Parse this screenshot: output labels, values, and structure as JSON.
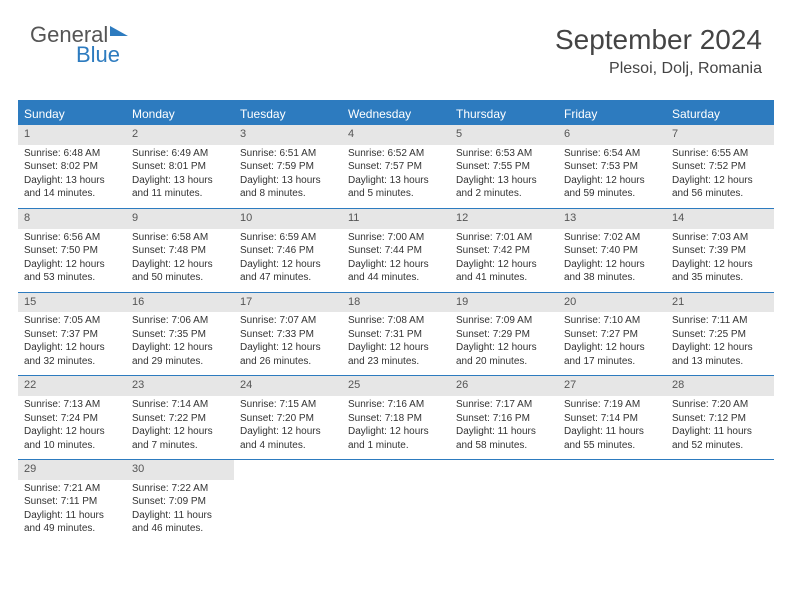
{
  "logo": {
    "text_top": "General",
    "text_bottom": "Blue"
  },
  "header": {
    "month": "September 2024",
    "location": "Plesoi, Dolj, Romania"
  },
  "colors": {
    "accent": "#2d7bbf",
    "daynum_bg": "#e6e6e6",
    "text": "#333333",
    "bg": "#ffffff"
  },
  "dow": [
    "Sunday",
    "Monday",
    "Tuesday",
    "Wednesday",
    "Thursday",
    "Friday",
    "Saturday"
  ],
  "weeks": [
    [
      {
        "n": "1",
        "sr": "6:48 AM",
        "ss": "8:02 PM",
        "dl": "13 hours and 14 minutes."
      },
      {
        "n": "2",
        "sr": "6:49 AM",
        "ss": "8:01 PM",
        "dl": "13 hours and 11 minutes."
      },
      {
        "n": "3",
        "sr": "6:51 AM",
        "ss": "7:59 PM",
        "dl": "13 hours and 8 minutes."
      },
      {
        "n": "4",
        "sr": "6:52 AM",
        "ss": "7:57 PM",
        "dl": "13 hours and 5 minutes."
      },
      {
        "n": "5",
        "sr": "6:53 AM",
        "ss": "7:55 PM",
        "dl": "13 hours and 2 minutes."
      },
      {
        "n": "6",
        "sr": "6:54 AM",
        "ss": "7:53 PM",
        "dl": "12 hours and 59 minutes."
      },
      {
        "n": "7",
        "sr": "6:55 AM",
        "ss": "7:52 PM",
        "dl": "12 hours and 56 minutes."
      }
    ],
    [
      {
        "n": "8",
        "sr": "6:56 AM",
        "ss": "7:50 PM",
        "dl": "12 hours and 53 minutes."
      },
      {
        "n": "9",
        "sr": "6:58 AM",
        "ss": "7:48 PM",
        "dl": "12 hours and 50 minutes."
      },
      {
        "n": "10",
        "sr": "6:59 AM",
        "ss": "7:46 PM",
        "dl": "12 hours and 47 minutes."
      },
      {
        "n": "11",
        "sr": "7:00 AM",
        "ss": "7:44 PM",
        "dl": "12 hours and 44 minutes."
      },
      {
        "n": "12",
        "sr": "7:01 AM",
        "ss": "7:42 PM",
        "dl": "12 hours and 41 minutes."
      },
      {
        "n": "13",
        "sr": "7:02 AM",
        "ss": "7:40 PM",
        "dl": "12 hours and 38 minutes."
      },
      {
        "n": "14",
        "sr": "7:03 AM",
        "ss": "7:39 PM",
        "dl": "12 hours and 35 minutes."
      }
    ],
    [
      {
        "n": "15",
        "sr": "7:05 AM",
        "ss": "7:37 PM",
        "dl": "12 hours and 32 minutes."
      },
      {
        "n": "16",
        "sr": "7:06 AM",
        "ss": "7:35 PM",
        "dl": "12 hours and 29 minutes."
      },
      {
        "n": "17",
        "sr": "7:07 AM",
        "ss": "7:33 PM",
        "dl": "12 hours and 26 minutes."
      },
      {
        "n": "18",
        "sr": "7:08 AM",
        "ss": "7:31 PM",
        "dl": "12 hours and 23 minutes."
      },
      {
        "n": "19",
        "sr": "7:09 AM",
        "ss": "7:29 PM",
        "dl": "12 hours and 20 minutes."
      },
      {
        "n": "20",
        "sr": "7:10 AM",
        "ss": "7:27 PM",
        "dl": "12 hours and 17 minutes."
      },
      {
        "n": "21",
        "sr": "7:11 AM",
        "ss": "7:25 PM",
        "dl": "12 hours and 13 minutes."
      }
    ],
    [
      {
        "n": "22",
        "sr": "7:13 AM",
        "ss": "7:24 PM",
        "dl": "12 hours and 10 minutes."
      },
      {
        "n": "23",
        "sr": "7:14 AM",
        "ss": "7:22 PM",
        "dl": "12 hours and 7 minutes."
      },
      {
        "n": "24",
        "sr": "7:15 AM",
        "ss": "7:20 PM",
        "dl": "12 hours and 4 minutes."
      },
      {
        "n": "25",
        "sr": "7:16 AM",
        "ss": "7:18 PM",
        "dl": "12 hours and 1 minute."
      },
      {
        "n": "26",
        "sr": "7:17 AM",
        "ss": "7:16 PM",
        "dl": "11 hours and 58 minutes."
      },
      {
        "n": "27",
        "sr": "7:19 AM",
        "ss": "7:14 PM",
        "dl": "11 hours and 55 minutes."
      },
      {
        "n": "28",
        "sr": "7:20 AM",
        "ss": "7:12 PM",
        "dl": "11 hours and 52 minutes."
      }
    ],
    [
      {
        "n": "29",
        "sr": "7:21 AM",
        "ss": "7:11 PM",
        "dl": "11 hours and 49 minutes."
      },
      {
        "n": "30",
        "sr": "7:22 AM",
        "ss": "7:09 PM",
        "dl": "11 hours and 46 minutes."
      },
      null,
      null,
      null,
      null,
      null
    ]
  ],
  "labels": {
    "sunrise": "Sunrise:",
    "sunset": "Sunset:",
    "daylight": "Daylight:"
  }
}
